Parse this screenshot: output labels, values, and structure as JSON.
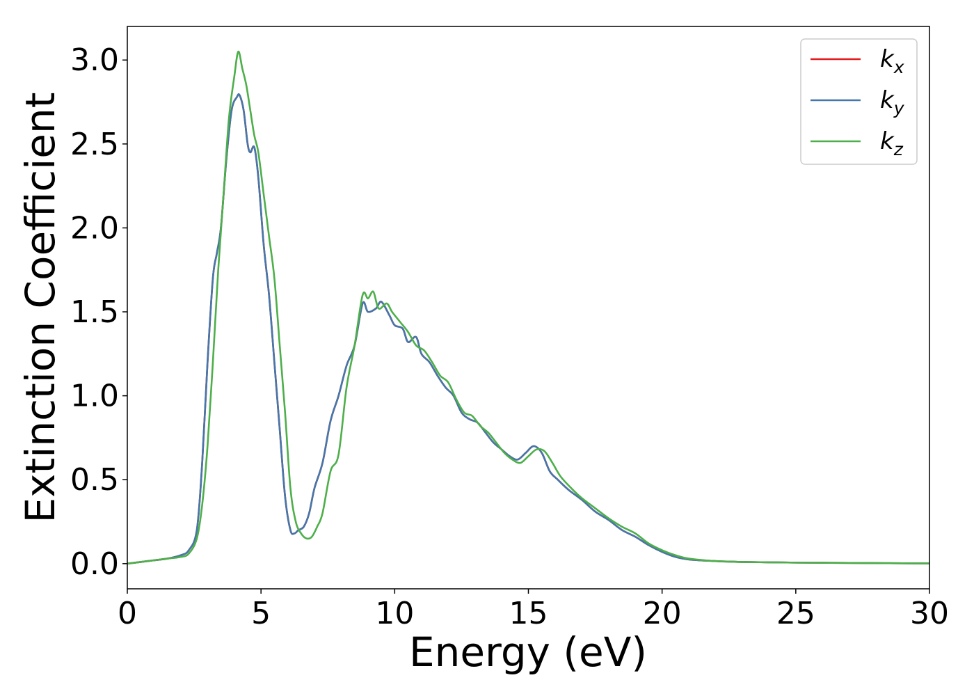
{
  "chart_data": {
    "type": "line",
    "xlabel": "Energy (eV)",
    "ylabel": "Extinction Coefficient",
    "xlim": [
      0,
      30
    ],
    "ylim": [
      -0.15,
      3.2
    ],
    "xticks": [
      0,
      5,
      10,
      15,
      20,
      25,
      30
    ],
    "xtick_labels": [
      "0",
      "5",
      "10",
      "15",
      "20",
      "25",
      "30"
    ],
    "yticks": [
      0.0,
      0.5,
      1.0,
      1.5,
      2.0,
      2.5,
      3.0
    ],
    "ytick_labels": [
      "0.0",
      "0.5",
      "1.0",
      "1.5",
      "2.0",
      "2.5",
      "3.0"
    ],
    "grid": false,
    "legend_position": "top-right",
    "series": [
      {
        "name": "k_x",
        "label_base": "k",
        "label_sub": "x",
        "color": "#e41a1c",
        "x": [
          0,
          0.5,
          1,
          1.5,
          2,
          2.3,
          2.6,
          2.8,
          3.0,
          3.2,
          3.35,
          3.5,
          3.7,
          3.9,
          4.1,
          4.2,
          4.35,
          4.5,
          4.6,
          4.75,
          4.9,
          5.1,
          5.3,
          5.5,
          5.7,
          5.9,
          6.1,
          6.25,
          6.4,
          6.6,
          6.8,
          7.0,
          7.3,
          7.6,
          7.9,
          8.2,
          8.5,
          8.8,
          9.0,
          9.3,
          9.5,
          9.8,
          10.0,
          10.3,
          10.5,
          10.8,
          11.0,
          11.3,
          11.6,
          11.9,
          12.2,
          12.5,
          12.8,
          13.1,
          13.4,
          13.7,
          14.0,
          14.3,
          14.6,
          14.9,
          15.2,
          15.5,
          15.8,
          16.1,
          16.5,
          17,
          17.5,
          18,
          18.5,
          19,
          19.5,
          20,
          20.5,
          21,
          22,
          23,
          24,
          25,
          26,
          27,
          28,
          29,
          30
        ],
        "values": [
          0.0,
          0.01,
          0.02,
          0.03,
          0.05,
          0.08,
          0.2,
          0.6,
          1.2,
          1.7,
          1.85,
          2.0,
          2.4,
          2.7,
          2.78,
          2.79,
          2.7,
          2.5,
          2.45,
          2.48,
          2.3,
          1.9,
          1.6,
          1.2,
          0.8,
          0.4,
          0.2,
          0.18,
          0.2,
          0.22,
          0.3,
          0.45,
          0.6,
          0.85,
          1.0,
          1.18,
          1.3,
          1.55,
          1.5,
          1.52,
          1.56,
          1.48,
          1.42,
          1.4,
          1.32,
          1.35,
          1.25,
          1.2,
          1.12,
          1.05,
          1.0,
          0.9,
          0.86,
          0.84,
          0.78,
          0.72,
          0.68,
          0.64,
          0.62,
          0.66,
          0.7,
          0.66,
          0.55,
          0.5,
          0.44,
          0.38,
          0.31,
          0.26,
          0.2,
          0.16,
          0.11,
          0.07,
          0.04,
          0.025,
          0.015,
          0.01,
          0.008,
          0.006,
          0.005,
          0.004,
          0.003,
          0.002,
          0.001
        ]
      },
      {
        "name": "k_y",
        "label_base": "k",
        "label_sub": "y",
        "color": "#4477aa",
        "x": [
          0,
          0.5,
          1,
          1.5,
          2,
          2.3,
          2.6,
          2.8,
          3.0,
          3.2,
          3.35,
          3.5,
          3.7,
          3.9,
          4.1,
          4.2,
          4.35,
          4.5,
          4.6,
          4.75,
          4.9,
          5.1,
          5.3,
          5.5,
          5.7,
          5.9,
          6.1,
          6.25,
          6.4,
          6.6,
          6.8,
          7.0,
          7.3,
          7.6,
          7.9,
          8.2,
          8.5,
          8.8,
          9.0,
          9.3,
          9.5,
          9.8,
          10.0,
          10.3,
          10.5,
          10.8,
          11.0,
          11.3,
          11.6,
          11.9,
          12.2,
          12.5,
          12.8,
          13.1,
          13.4,
          13.7,
          14.0,
          14.3,
          14.6,
          14.9,
          15.2,
          15.5,
          15.8,
          16.1,
          16.5,
          17,
          17.5,
          18,
          18.5,
          19,
          19.5,
          20,
          20.5,
          21,
          22,
          23,
          24,
          25,
          26,
          27,
          28,
          29,
          30
        ],
        "values": [
          0.0,
          0.01,
          0.02,
          0.03,
          0.05,
          0.08,
          0.2,
          0.6,
          1.2,
          1.7,
          1.85,
          2.0,
          2.4,
          2.7,
          2.78,
          2.79,
          2.7,
          2.5,
          2.45,
          2.48,
          2.3,
          1.9,
          1.6,
          1.2,
          0.8,
          0.4,
          0.2,
          0.18,
          0.2,
          0.22,
          0.3,
          0.45,
          0.6,
          0.85,
          1.0,
          1.18,
          1.3,
          1.55,
          1.5,
          1.52,
          1.56,
          1.48,
          1.42,
          1.4,
          1.32,
          1.35,
          1.25,
          1.2,
          1.12,
          1.05,
          1.0,
          0.9,
          0.86,
          0.84,
          0.78,
          0.72,
          0.68,
          0.64,
          0.62,
          0.66,
          0.7,
          0.66,
          0.55,
          0.5,
          0.44,
          0.38,
          0.31,
          0.26,
          0.2,
          0.16,
          0.11,
          0.07,
          0.04,
          0.025,
          0.015,
          0.01,
          0.008,
          0.006,
          0.005,
          0.004,
          0.003,
          0.002,
          0.001
        ]
      },
      {
        "name": "k_z",
        "label_base": "k",
        "label_sub": "z",
        "color": "#4daf4a",
        "x": [
          0,
          0.5,
          1,
          1.5,
          2,
          2.3,
          2.6,
          2.8,
          3.0,
          3.2,
          3.4,
          3.6,
          3.8,
          4.0,
          4.15,
          4.3,
          4.45,
          4.6,
          4.75,
          4.9,
          5.1,
          5.3,
          5.5,
          5.7,
          5.9,
          6.1,
          6.3,
          6.5,
          6.7,
          6.9,
          7.1,
          7.3,
          7.6,
          7.9,
          8.2,
          8.5,
          8.8,
          9.0,
          9.2,
          9.4,
          9.7,
          9.9,
          10.2,
          10.5,
          10.8,
          11.1,
          11.4,
          11.7,
          12.0,
          12.3,
          12.6,
          12.9,
          13.2,
          13.5,
          13.8,
          14.1,
          14.4,
          14.7,
          15.0,
          15.3,
          15.6,
          15.9,
          16.2,
          16.6,
          17,
          17.5,
          18,
          18.5,
          19,
          19.5,
          20,
          20.5,
          21,
          22,
          23,
          24,
          25,
          26,
          27,
          28,
          29,
          30
        ],
        "values": [
          0.0,
          0.01,
          0.02,
          0.03,
          0.04,
          0.06,
          0.15,
          0.35,
          0.7,
          1.2,
          1.75,
          2.2,
          2.65,
          2.9,
          3.05,
          2.95,
          2.85,
          2.7,
          2.55,
          2.45,
          2.2,
          1.95,
          1.7,
          1.3,
          0.9,
          0.45,
          0.25,
          0.18,
          0.15,
          0.16,
          0.22,
          0.3,
          0.55,
          0.65,
          1.05,
          1.3,
          1.6,
          1.58,
          1.62,
          1.52,
          1.55,
          1.5,
          1.44,
          1.38,
          1.3,
          1.27,
          1.2,
          1.12,
          1.08,
          0.98,
          0.9,
          0.88,
          0.82,
          0.78,
          0.72,
          0.66,
          0.62,
          0.6,
          0.64,
          0.68,
          0.67,
          0.6,
          0.52,
          0.45,
          0.39,
          0.33,
          0.27,
          0.22,
          0.18,
          0.12,
          0.08,
          0.05,
          0.03,
          0.015,
          0.01,
          0.008,
          0.006,
          0.005,
          0.004,
          0.003,
          0.002,
          0.001
        ]
      }
    ]
  }
}
